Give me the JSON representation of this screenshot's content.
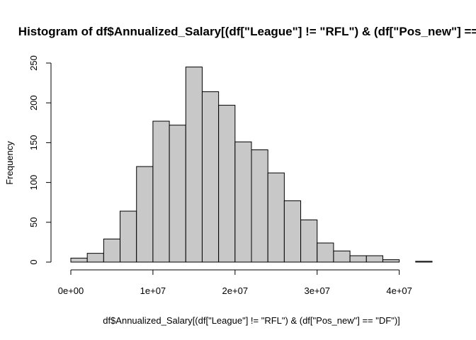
{
  "chart_data": {
    "type": "bar",
    "title": "Histogram of df$Annualized_Salary[(df[\"League\"] != \"RFL\") & (df[\"Pos_new\"] == \"DF\")]",
    "xlabel": "df$Annualized_Salary[(df[\"League\"] != \"RFL\") & (df[\"Pos_new\"] == \"DF\")]",
    "ylabel": "Frequency",
    "bin_width": 2000000,
    "bins": [
      {
        "start": 0,
        "end": 2000000,
        "count": 5
      },
      {
        "start": 2000000,
        "end": 4000000,
        "count": 11
      },
      {
        "start": 4000000,
        "end": 6000000,
        "count": 29
      },
      {
        "start": 6000000,
        "end": 8000000,
        "count": 64
      },
      {
        "start": 8000000,
        "end": 10000000,
        "count": 120
      },
      {
        "start": 10000000,
        "end": 12000000,
        "count": 177
      },
      {
        "start": 12000000,
        "end": 14000000,
        "count": 172
      },
      {
        "start": 14000000,
        "end": 16000000,
        "count": 245
      },
      {
        "start": 16000000,
        "end": 18000000,
        "count": 214
      },
      {
        "start": 18000000,
        "end": 20000000,
        "count": 197
      },
      {
        "start": 20000000,
        "end": 22000000,
        "count": 151
      },
      {
        "start": 22000000,
        "end": 24000000,
        "count": 141
      },
      {
        "start": 24000000,
        "end": 26000000,
        "count": 112
      },
      {
        "start": 26000000,
        "end": 28000000,
        "count": 77
      },
      {
        "start": 28000000,
        "end": 30000000,
        "count": 53
      },
      {
        "start": 30000000,
        "end": 32000000,
        "count": 24
      },
      {
        "start": 32000000,
        "end": 34000000,
        "count": 14
      },
      {
        "start": 34000000,
        "end": 36000000,
        "count": 8
      },
      {
        "start": 36000000,
        "end": 38000000,
        "count": 8
      },
      {
        "start": 38000000,
        "end": 40000000,
        "count": 3
      },
      {
        "start": 40000000,
        "end": 42000000,
        "count": 0
      },
      {
        "start": 42000000,
        "end": 44000000,
        "count": 1
      }
    ],
    "xlim": [
      0,
      44000000
    ],
    "ylim": [
      0,
      250
    ],
    "x_ticks": [
      {
        "value": 0,
        "label": "0e+00"
      },
      {
        "value": 10000000,
        "label": "1e+07"
      },
      {
        "value": 20000000,
        "label": "2e+07"
      },
      {
        "value": 30000000,
        "label": "3e+07"
      },
      {
        "value": 40000000,
        "label": "4e+07"
      }
    ],
    "y_ticks": [
      {
        "value": 0,
        "label": "0"
      },
      {
        "value": 50,
        "label": "50"
      },
      {
        "value": 100,
        "label": "100"
      },
      {
        "value": 150,
        "label": "150"
      },
      {
        "value": 200,
        "label": "200"
      },
      {
        "value": 250,
        "label": "250"
      }
    ],
    "bar_fill": "#c8c8c8",
    "bar_stroke": "#000000",
    "grid": false,
    "legend": "none"
  }
}
